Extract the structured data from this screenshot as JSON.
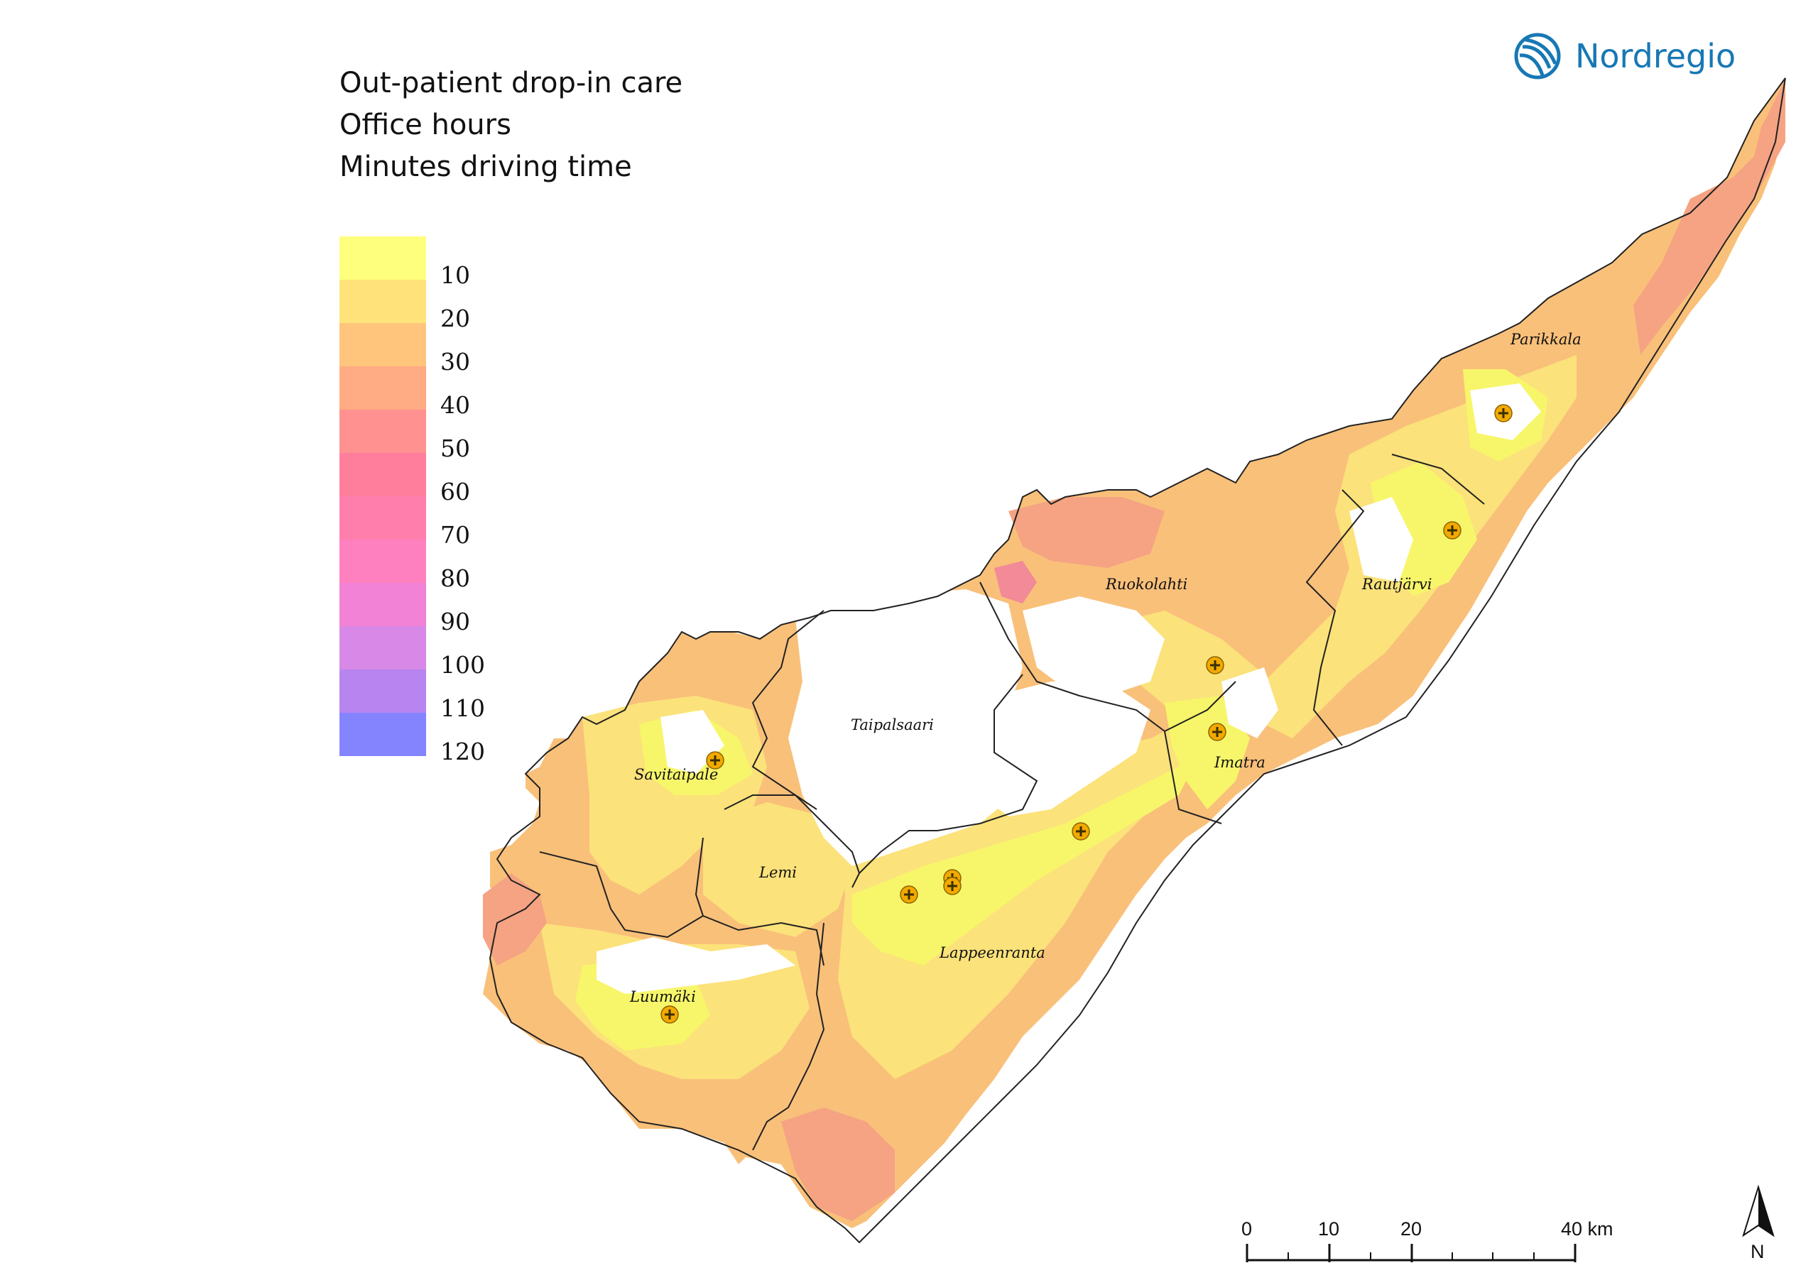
{
  "title": {
    "line1": "Out-patient drop-in care",
    "line2": "Office hours",
    "line3": "Minutes driving time"
  },
  "legend": {
    "items": [
      {
        "label": "10",
        "color": "#ffff7e"
      },
      {
        "label": "20",
        "color": "#ffe37a"
      },
      {
        "label": "30",
        "color": "#ffc57c"
      },
      {
        "label": "40",
        "color": "#ffab83"
      },
      {
        "label": "50",
        "color": "#ff9290"
      },
      {
        "label": "60",
        "color": "#ff7e9c"
      },
      {
        "label": "70",
        "color": "#ff7eac"
      },
      {
        "label": "80",
        "color": "#ff80bf"
      },
      {
        "label": "90",
        "color": "#f282d6"
      },
      {
        "label": "100",
        "color": "#d888e6"
      },
      {
        "label": "110",
        "color": "#b884ef"
      },
      {
        "label": "120",
        "color": "#8584ff"
      }
    ]
  },
  "logo": {
    "text": "Nordregio",
    "color": "#1778b4"
  },
  "places": {
    "parikkala": "Parikkala",
    "rautjarvi": "Rautjärvi",
    "ruokolahti": "Ruokolahti",
    "imatra": "Imatra",
    "taipalsaari": "Taipalsaari",
    "savitaipale": "Savitaipale",
    "lemi": "Lemi",
    "lappeenranta": "Lappeenranta",
    "luumaki": "Luumäki"
  },
  "health_centres": {
    "count": 10,
    "icon": "health-centre-icon",
    "color": "#f2a900"
  },
  "scale_bar": {
    "labels": [
      "0",
      "10",
      "20",
      "40 km"
    ]
  },
  "north_arrow": {
    "label": "N"
  }
}
